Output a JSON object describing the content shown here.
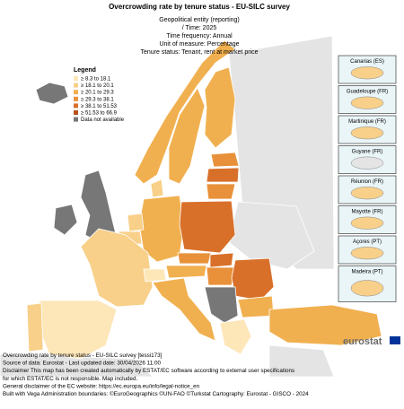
{
  "header": {
    "title": "Overcrowding rate by tenure status - EU-SILC survey",
    "lines": [
      "Geopolitical entity (reporting)",
      "/ Time:  2025",
      "Time frequency:  Annual",
      "Unit of measure:  Percentage",
      "Tenure status:  Tenant, rent at market price"
    ]
  },
  "legend": {
    "title": "Legend",
    "items": [
      {
        "label": "≥ 8.3 to 18.1",
        "color": "#fde6b8"
      },
      {
        "label": "≥ 18.1 to 20.1",
        "color": "#f8d08a"
      },
      {
        "label": "≥ 20.1 to 29.3",
        "color": "#f1b04f"
      },
      {
        "label": "≥ 29.3 to 38.1",
        "color": "#e8913a"
      },
      {
        "label": "≥ 38.1 to 51.53",
        "color": "#d8702a"
      },
      {
        "label": "≥ 51.53 to 66.9",
        "color": "#b8501a"
      },
      {
        "label": "Data not available",
        "color": "#777777"
      }
    ]
  },
  "insets": [
    "Canarias (ES)",
    "Guadeloupe (FR)",
    "Martinique (FR)",
    "Guyane (FR)",
    "Réunion (FR)",
    "Mayotte (FR)",
    "Açores (PT)",
    "Madeira (PT)"
  ],
  "logo": "eurostat",
  "footer": [
    "Overcrowding rate by tenure status - EU-SILC survey [tessi173]",
    "Source of data: Eurostat - Last updated date: 30/04/2026 11:00",
    "Disclaimer This map has been created automatically by ESTAT/EC software according to external user specifications",
    "for which ESTAT/EC is not responsible. Map included.",
    "General disclaimer of the EC website: https://ec.europa.eu/info/legal-notice_en",
    "Built with Vega Administration boundaries: ©EuroGeographics ©UN-FAO ©Turkstat Cartography: Eurostat - GISCO - 2024"
  ]
}
